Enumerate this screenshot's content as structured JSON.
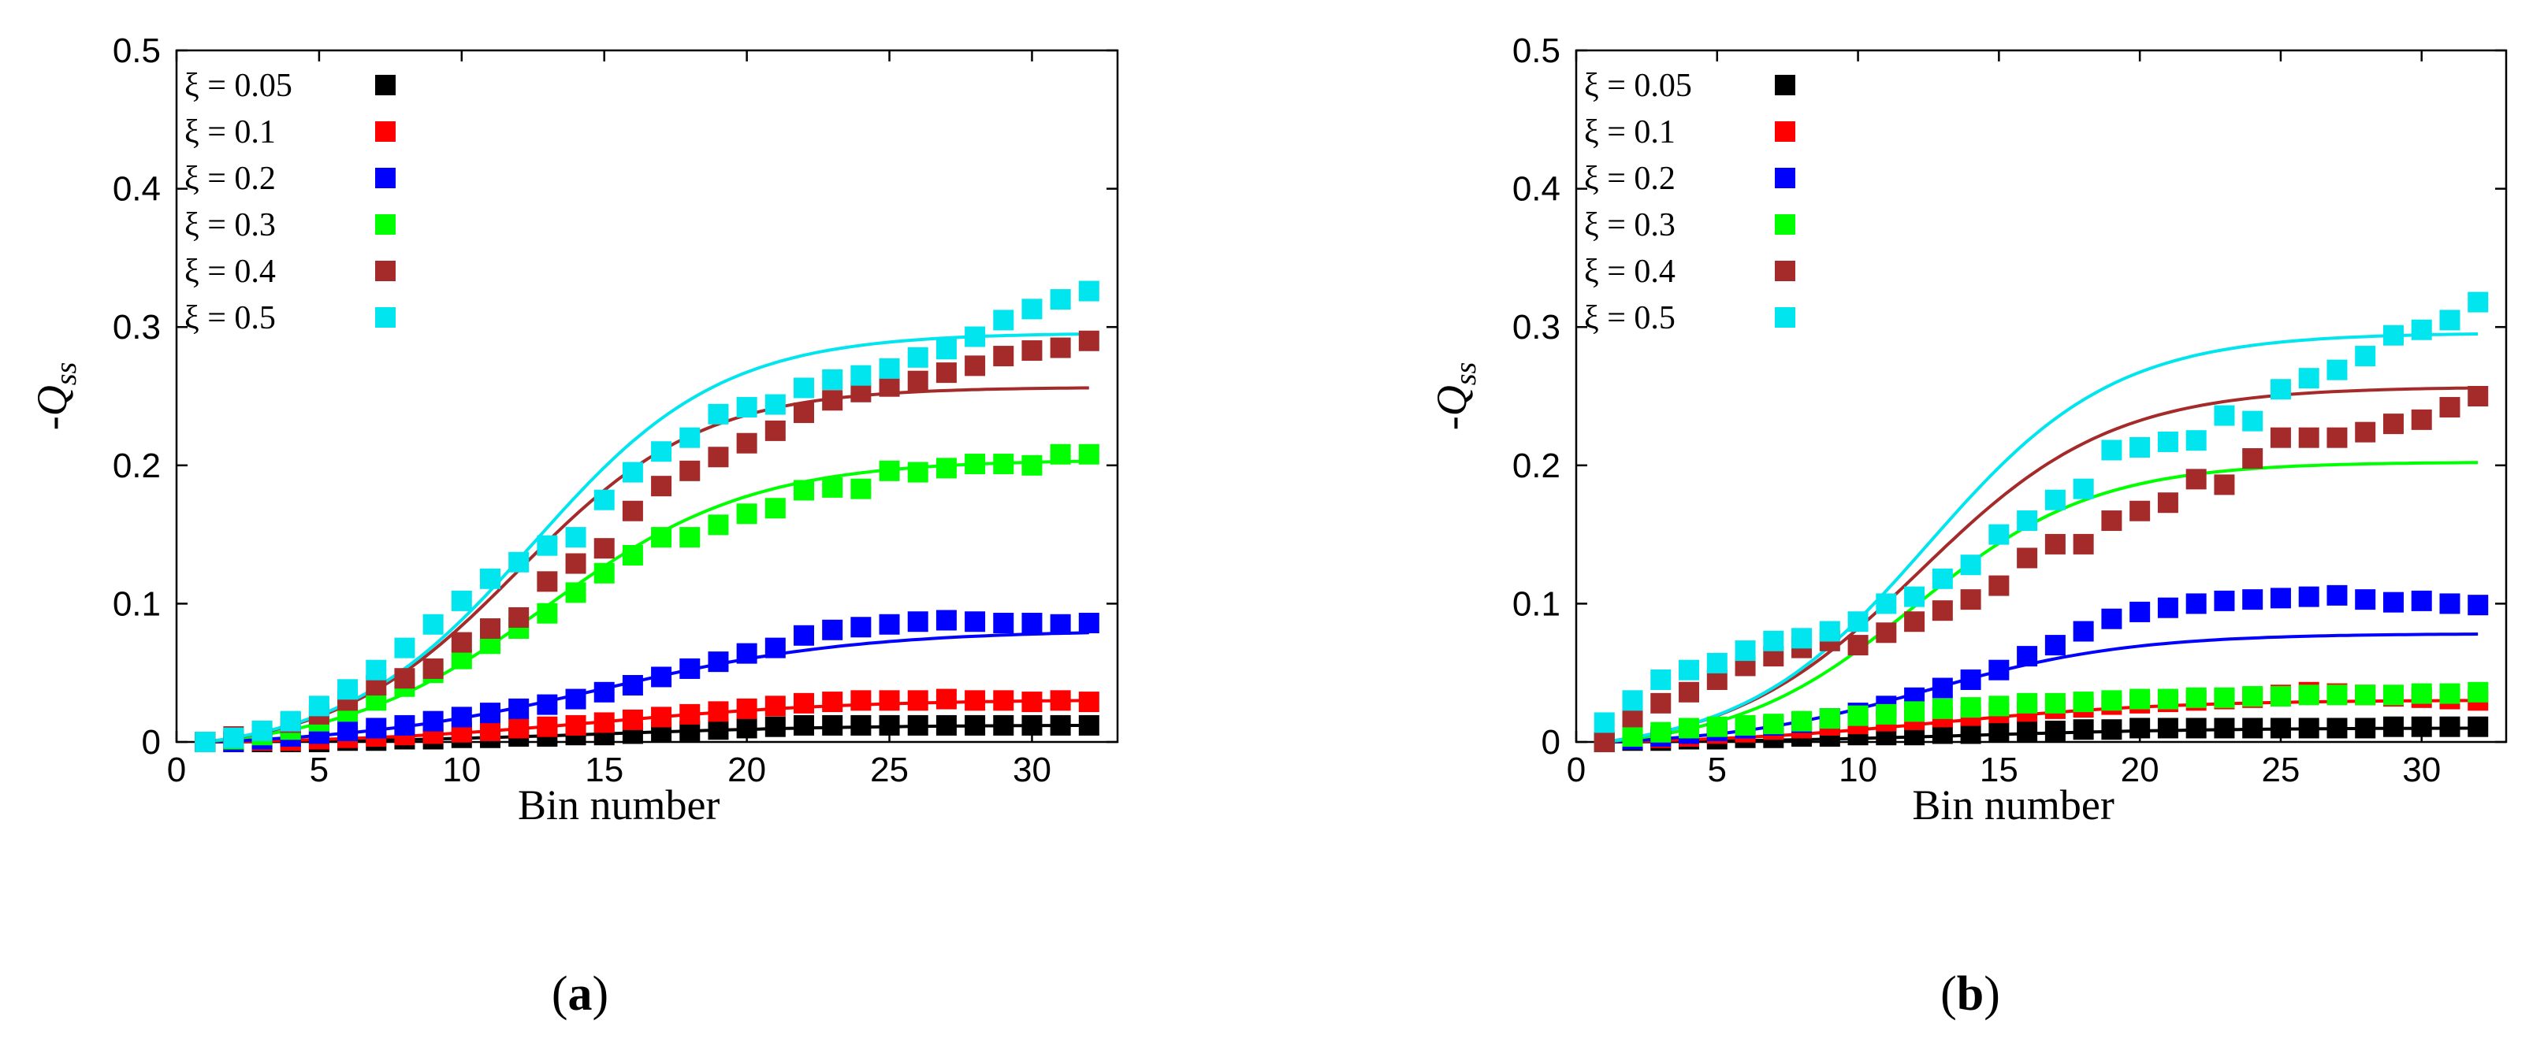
{
  "chart_data": [
    {
      "type": "scatter",
      "caption_letter": "a",
      "caption_open": "(",
      "caption_close": ")",
      "xlabel": "Bin number",
      "ylabel_prefix": "-",
      "ylabel_main": "Q",
      "ylabel_sub": "ss",
      "xlim": [
        0,
        33
      ],
      "ylim": [
        0,
        0.5
      ],
      "xticks": [
        "0",
        "5",
        "10",
        "15",
        "20",
        "25",
        "30"
      ],
      "xtick_values": [
        0,
        5,
        10,
        15,
        20,
        25,
        30
      ],
      "yticks": [
        "0",
        "0.1",
        "0.2",
        "0.3",
        "0.4",
        "0.5"
      ],
      "ytick_values": [
        0,
        0.1,
        0.2,
        0.3,
        0.4,
        0.5
      ],
      "x": [
        1,
        2,
        3,
        4,
        5,
        6,
        7,
        8,
        9,
        10,
        11,
        12,
        13,
        14,
        15,
        16,
        17,
        18,
        19,
        20,
        21,
        22,
        23,
        24,
        25,
        26,
        27,
        28,
        29,
        30,
        31,
        32
      ],
      "series": [
        {
          "name": "ξ = 0.05",
          "color": "#000000",
          "values": [
            0,
            0,
            0,
            0,
            0,
            0.001,
            0.001,
            0.002,
            0.002,
            0.003,
            0.003,
            0.004,
            0.004,
            0.005,
            0.005,
            0.006,
            0.007,
            0.008,
            0.009,
            0.01,
            0.011,
            0.012,
            0.012,
            0.012,
            0.012,
            0.012,
            0.012,
            0.012,
            0.012,
            0.012,
            0.012,
            0.012
          ],
          "fit_plateau": 0.012,
          "fit_mid": 15,
          "fit_width": 4.5
        },
        {
          "name": "ξ = 0.1",
          "color": "#ff0000",
          "values": [
            0,
            0,
            0.001,
            0.001,
            0.002,
            0.003,
            0.004,
            0.005,
            0.006,
            0.007,
            0.008,
            0.01,
            0.011,
            0.012,
            0.014,
            0.016,
            0.018,
            0.02,
            0.022,
            0.024,
            0.026,
            0.028,
            0.029,
            0.03,
            0.03,
            0.03,
            0.031,
            0.03,
            0.03,
            0.029,
            0.03,
            0.029
          ],
          "fit_plateau": 0.03,
          "fit_mid": 15,
          "fit_width": 4.5
        },
        {
          "name": "ξ = 0.2",
          "color": "#0000ff",
          "values": [
            0,
            0,
            0.002,
            0.004,
            0.006,
            0.008,
            0.01,
            0.012,
            0.015,
            0.018,
            0.021,
            0.024,
            0.027,
            0.031,
            0.036,
            0.041,
            0.047,
            0.053,
            0.058,
            0.064,
            0.068,
            0.077,
            0.081,
            0.083,
            0.085,
            0.087,
            0.088,
            0.087,
            0.086,
            0.086,
            0.085,
            0.086
          ],
          "fit_plateau": 0.079,
          "fit_mid": 15,
          "fit_width": 4.5
        },
        {
          "name": "ξ = 0.3",
          "color": "#00ff00",
          "values": [
            0,
            0.002,
            0.005,
            0.009,
            0.015,
            0.022,
            0.03,
            0.04,
            0.05,
            0.06,
            0.071,
            0.082,
            0.093,
            0.108,
            0.122,
            0.135,
            0.148,
            0.148,
            0.157,
            0.165,
            0.169,
            0.182,
            0.184,
            0.183,
            0.196,
            0.195,
            0.198,
            0.201,
            0.201,
            0.2,
            0.208,
            0.208
          ],
          "fit_plateau": 0.203,
          "fit_mid": 13,
          "fit_width": 3.6
        },
        {
          "name": "ξ = 0.4",
          "color": "#a52a2a",
          "values": [
            0,
            0.004,
            0.008,
            0.014,
            0.02,
            0.03,
            0.041,
            0.046,
            0.053,
            0.072,
            0.082,
            0.09,
            0.116,
            0.129,
            0.14,
            0.167,
            0.185,
            0.196,
            0.206,
            0.216,
            0.225,
            0.238,
            0.247,
            0.253,
            0.257,
            0.261,
            0.267,
            0.272,
            0.279,
            0.283,
            0.285,
            0.29
          ],
          "fit_plateau": 0.256,
          "fit_mid": 12,
          "fit_width": 3.2
        },
        {
          "name": "ξ = 0.5",
          "color": "#00e5ee",
          "values": [
            0,
            0.003,
            0.008,
            0.015,
            0.026,
            0.038,
            0.052,
            0.068,
            0.085,
            0.102,
            0.118,
            0.13,
            0.142,
            0.148,
            0.175,
            0.195,
            0.21,
            0.22,
            0.237,
            0.242,
            0.244,
            0.256,
            0.262,
            0.265,
            0.27,
            0.278,
            0.284,
            0.293,
            0.305,
            0.313,
            0.32,
            0.326
          ],
          "fit_plateau": 0.295,
          "fit_mid": 12.5,
          "fit_width": 3.3
        }
      ]
    },
    {
      "type": "scatter",
      "caption_letter": "b",
      "caption_open": "(",
      "caption_close": ")",
      "xlabel": "Bin number",
      "ylabel_prefix": "-",
      "ylabel_main": "Q",
      "ylabel_sub": "ss",
      "xlim": [
        0,
        33
      ],
      "ylim": [
        0,
        0.5
      ],
      "xticks": [
        "0",
        "5",
        "10",
        "15",
        "20",
        "25",
        "30"
      ],
      "xtick_values": [
        0,
        5,
        10,
        15,
        20,
        25,
        30
      ],
      "yticks": [
        "0",
        "0.1",
        "0.2",
        "0.3",
        "0.4",
        "0.5"
      ],
      "ytick_values": [
        0,
        0.1,
        0.2,
        0.3,
        0.4,
        0.5
      ],
      "x": [
        1,
        2,
        3,
        4,
        5,
        6,
        7,
        8,
        9,
        10,
        11,
        12,
        13,
        14,
        15,
        16,
        17,
        18,
        19,
        20,
        21,
        22,
        23,
        24,
        25,
        26,
        27,
        28,
        29,
        30,
        31,
        32
      ],
      "series": [
        {
          "name": "ξ = 0.05",
          "color": "#000000",
          "values": [
            0,
            0.001,
            0.001,
            0.002,
            0.002,
            0.003,
            0.003,
            0.004,
            0.004,
            0.005,
            0.005,
            0.005,
            0.006,
            0.006,
            0.007,
            0.008,
            0.008,
            0.009,
            0.009,
            0.01,
            0.01,
            0.01,
            0.01,
            0.01,
            0.01,
            0.01,
            0.01,
            0.01,
            0.011,
            0.011,
            0.011,
            0.011
          ],
          "fit_plateau": 0.01,
          "fit_mid": 14,
          "fit_width": 4.5
        },
        {
          "name": "ξ = 0.1",
          "color": "#ff0000",
          "values": [
            0,
            0.002,
            0.003,
            0.004,
            0.006,
            0.007,
            0.009,
            0.01,
            0.012,
            0.013,
            0.015,
            0.016,
            0.018,
            0.019,
            0.021,
            0.022,
            0.024,
            0.025,
            0.027,
            0.028,
            0.029,
            0.03,
            0.031,
            0.032,
            0.034,
            0.036,
            0.035,
            0.034,
            0.033,
            0.032,
            0.031,
            0.03
          ],
          "fit_plateau": 0.03,
          "fit_mid": 13,
          "fit_width": 4.2
        },
        {
          "name": "ξ = 0.2",
          "color": "#0000ff",
          "values": [
            0,
            0.002,
            0.004,
            0.006,
            0.008,
            0.01,
            0.012,
            0.014,
            0.017,
            0.021,
            0.026,
            0.032,
            0.039,
            0.045,
            0.052,
            0.062,
            0.07,
            0.08,
            0.089,
            0.094,
            0.097,
            0.1,
            0.102,
            0.103,
            0.104,
            0.105,
            0.106,
            0.103,
            0.101,
            0.102,
            0.1,
            0.099
          ],
          "fit_plateau": 0.078,
          "fit_mid": 12.5,
          "fit_width": 3.6
        },
        {
          "name": "ξ = 0.3",
          "color": "#00ff00",
          "values": [
            0,
            0.004,
            0.007,
            0.01,
            0.011,
            0.012,
            0.013,
            0.015,
            0.017,
            0.019,
            0.02,
            0.022,
            0.024,
            0.025,
            0.026,
            0.028,
            0.028,
            0.029,
            0.03,
            0.031,
            0.031,
            0.032,
            0.032,
            0.033,
            0.033,
            0.034,
            0.034,
            0.034,
            0.034,
            0.035,
            0.035,
            0.036
          ],
          "fit_plateau": 0.202,
          "fit_mid": 12,
          "fit_width": 3.2
        },
        {
          "name": "ξ = 0.4",
          "color": "#a52a2a",
          "values": [
            0,
            0.018,
            0.028,
            0.036,
            0.045,
            0.055,
            0.062,
            0.068,
            0.073,
            0.07,
            0.079,
            0.087,
            0.095,
            0.103,
            0.113,
            0.133,
            0.143,
            0.143,
            0.16,
            0.167,
            0.173,
            0.19,
            0.186,
            0.205,
            0.22,
            0.22,
            0.22,
            0.224,
            0.23,
            0.233,
            0.242,
            0.25
          ],
          "fit_plateau": 0.256,
          "fit_mid": 12.2,
          "fit_width": 3.4
        },
        {
          "name": "ξ = 0.5",
          "color": "#00e5ee",
          "values": [
            0.014,
            0.03,
            0.045,
            0.052,
            0.057,
            0.066,
            0.073,
            0.075,
            0.08,
            0.087,
            0.1,
            0.105,
            0.118,
            0.128,
            0.15,
            0.16,
            0.175,
            0.183,
            0.211,
            0.213,
            0.217,
            0.218,
            0.236,
            0.232,
            0.255,
            0.263,
            0.269,
            0.279,
            0.294,
            0.298,
            0.305,
            0.318
          ],
          "fit_plateau": 0.295,
          "fit_mid": 12.5,
          "fit_width": 3.3
        }
      ]
    }
  ]
}
